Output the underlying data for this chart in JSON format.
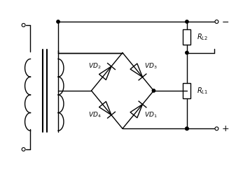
{
  "bg_color": "#ffffff",
  "line_color": "#000000",
  "figsize": [
    3.47,
    2.45
  ],
  "dpi": 100,
  "lw": 1.0
}
